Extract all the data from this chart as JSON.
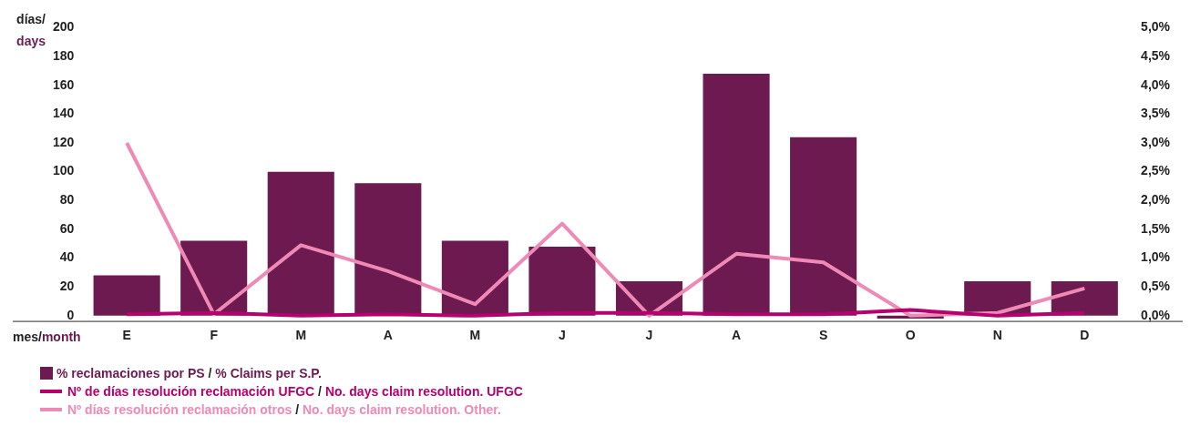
{
  "chart_data": {
    "type": "bar",
    "xlabel": "mes/month",
    "ylabel": "días/ days",
    "categories": [
      "E",
      "F",
      "M",
      "A",
      "M",
      "J",
      "J",
      "A",
      "S",
      "O",
      "N",
      "D"
    ],
    "series": [
      {
        "name": "% reclamaciones por PS / % Claims per S.P.",
        "axis": "y2",
        "color": "#6d1a50",
        "values": [
          0.7,
          1.3,
          2.5,
          2.3,
          1.3,
          1.2,
          0.6,
          4.2,
          3.1,
          -0.05,
          0.6,
          0.6
        ]
      },
      {
        "name": "Nº de días resolución reclamación UFGC / No. days claim resolution. UFGC",
        "type": "line",
        "axis": "y",
        "color": "#b5006e",
        "values": [
          1,
          2,
          0,
          1,
          0,
          2,
          2,
          1,
          1,
          4,
          0,
          2
        ]
      },
      {
        "name": "Nº días resolución reclamación otros / No. days claim resolution. Other.",
        "type": "line",
        "axis": "y",
        "color": "#ee8ab5",
        "values": [
          120,
          1,
          49,
          31,
          8,
          64,
          0,
          43,
          37,
          0,
          2,
          19
        ]
      }
    ],
    "ylim": [
      -4,
      200
    ],
    "yticks": [
      0,
      20,
      40,
      60,
      80,
      100,
      120,
      140,
      160,
      180,
      200
    ],
    "y2lim": [
      -0.1,
      5
    ],
    "y2ticks": [
      {
        "value": 0,
        "label": "0,0%"
      },
      {
        "value": 0.5,
        "label": "0,5%"
      },
      {
        "value": 1,
        "label": "1,0%"
      },
      {
        "value": 1.5,
        "label": "1,5%"
      },
      {
        "value": 2,
        "label": "2,0%"
      },
      {
        "value": 2.5,
        "label": "2,5%"
      },
      {
        "value": 3,
        "label": "3,0%"
      },
      {
        "value": 3.5,
        "label": "3,5%"
      },
      {
        "value": 4,
        "label": "4,0%"
      },
      {
        "value": 4.5,
        "label": "4,5%"
      },
      {
        "value": 5,
        "label": "5,0%"
      }
    ],
    "grid": false,
    "legend": "bottom",
    "marker": "none"
  }
}
